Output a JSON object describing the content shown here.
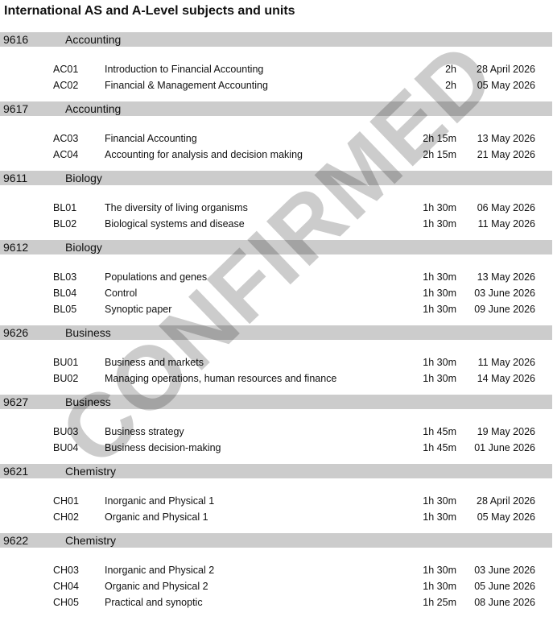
{
  "title": "International AS and A-Level subjects and units",
  "watermark": "CONFIRMED",
  "sections": [
    {
      "code": "9616",
      "subject": "Accounting",
      "units": [
        {
          "code": "AC01",
          "name": "Introduction to Financial Accounting",
          "duration": "2h",
          "date": "28 April 2026"
        },
        {
          "code": "AC02",
          "name": "Financial & Management Accounting",
          "duration": "2h",
          "date": "05 May 2026"
        }
      ]
    },
    {
      "code": "9617",
      "subject": "Accounting",
      "units": [
        {
          "code": "AC03",
          "name": "Financial Accounting",
          "duration": "2h 15m",
          "date": "13 May 2026"
        },
        {
          "code": "AC04",
          "name": "Accounting for analysis and decision making",
          "duration": "2h 15m",
          "date": "21 May 2026"
        }
      ]
    },
    {
      "code": "9611",
      "subject": "Biology",
      "units": [
        {
          "code": "BL01",
          "name": "The diversity of living organisms",
          "duration": "1h 30m",
          "date": "06 May 2026"
        },
        {
          "code": "BL02",
          "name": "Biological systems and disease",
          "duration": "1h 30m",
          "date": "11 May 2026"
        }
      ]
    },
    {
      "code": "9612",
      "subject": "Biology",
      "units": [
        {
          "code": "BL03",
          "name": "Populations and genes",
          "duration": "1h 30m",
          "date": "13 May 2026"
        },
        {
          "code": "BL04",
          "name": "Control",
          "duration": "1h 30m",
          "date": "03 June 2026"
        },
        {
          "code": "BL05",
          "name": "Synoptic paper",
          "duration": "1h 30m",
          "date": "09 June 2026"
        }
      ]
    },
    {
      "code": "9626",
      "subject": "Business",
      "units": [
        {
          "code": "BU01",
          "name": "Business and markets",
          "duration": "1h 30m",
          "date": "11 May 2026"
        },
        {
          "code": "BU02",
          "name": "Managing operations, human resources and finance",
          "duration": "1h 30m",
          "date": "14 May 2026"
        }
      ]
    },
    {
      "code": "9627",
      "subject": "Business",
      "units": [
        {
          "code": "BU03",
          "name": "Business strategy",
          "duration": "1h 45m",
          "date": "19 May 2026"
        },
        {
          "code": "BU04",
          "name": "Business decision-making",
          "duration": "1h 45m",
          "date": "01 June 2026"
        }
      ]
    },
    {
      "code": "9621",
      "subject": "Chemistry",
      "units": [
        {
          "code": "CH01",
          "name": "Inorganic and Physical 1",
          "duration": "1h 30m",
          "date": "28 April 2026"
        },
        {
          "code": "CH02",
          "name": "Organic and Physical 1",
          "duration": "1h 30m",
          "date": "05 May 2026"
        }
      ]
    },
    {
      "code": "9622",
      "subject": "Chemistry",
      "units": [
        {
          "code": "CH03",
          "name": "Inorganic and Physical 2",
          "duration": "1h 30m",
          "date": "03 June 2026"
        },
        {
          "code": "CH04",
          "name": "Organic and Physical 2",
          "duration": "1h 30m",
          "date": "05 June 2026"
        },
        {
          "code": "CH05",
          "name": "Practical and synoptic",
          "duration": "1h 25m",
          "date": "08 June 2026"
        }
      ]
    }
  ]
}
